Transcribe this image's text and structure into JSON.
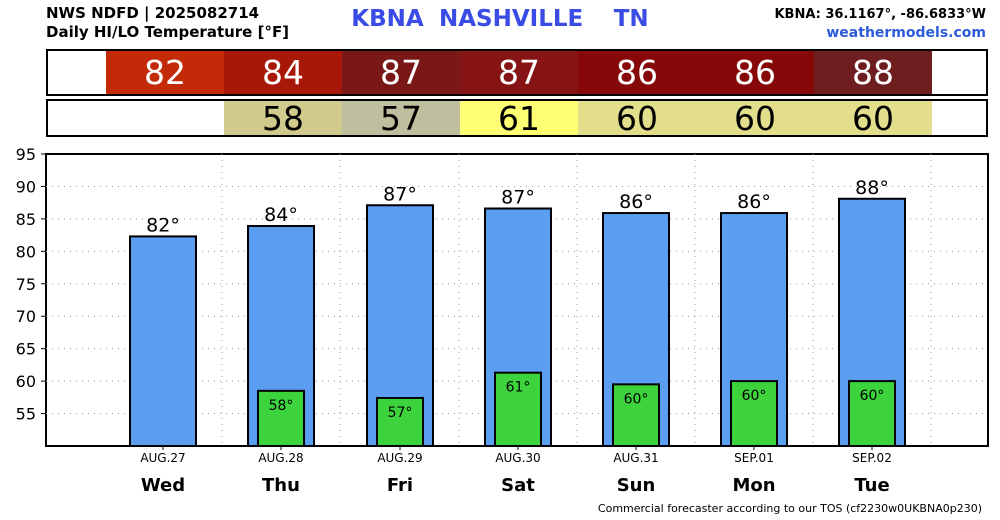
{
  "header": {
    "line1": "NWS NDFD | 2025082714",
    "line2": "Daily HI/LO Temperature [°F]",
    "station": "KBNA",
    "city": "NASHVILLE",
    "state": "TN",
    "coords": "KBNA: 36.1167°, -86.6833°W",
    "site": "weathermodels.com"
  },
  "colors": {
    "hi_bar": "#5b9df0",
    "lo_bar": "#3cd33c",
    "hi_cells": [
      "#c22a08",
      "#a81808",
      "#7a1818",
      "#861414",
      "#860808",
      "#860808",
      "#6e1e1e"
    ],
    "lo_cells": [
      "#d0cb8c",
      "#bfbfa0",
      "#ffff73",
      "#e3de8c",
      "#e3de8c",
      "#e3de8c"
    ]
  },
  "hi_row": [
    "82",
    "84",
    "87",
    "87",
    "86",
    "86",
    "88"
  ],
  "lo_row": [
    "58",
    "57",
    "61",
    "60",
    "60",
    "60"
  ],
  "chart_data": {
    "type": "bar",
    "title": "Daily HI/LO Temperature [°F]",
    "dates": [
      "AUG.27",
      "AUG.28",
      "AUG.29",
      "AUG.30",
      "AUG.31",
      "SEP.01",
      "SEP.02"
    ],
    "days": [
      "Wed",
      "Thu",
      "Fri",
      "Sat",
      "Sun",
      "Mon",
      "Tue"
    ],
    "ylim": [
      50,
      95
    ],
    "yticks": [
      55,
      60,
      65,
      70,
      75,
      80,
      85,
      90,
      95
    ],
    "grid": true,
    "series": [
      {
        "values": [
          82.3,
          83.9,
          87.1,
          86.6,
          85.9,
          85.9,
          88.1
        ],
        "labels": [
          "82°",
          "84°",
          "87°",
          "87°",
          "86°",
          "86°",
          "88°"
        ]
      },
      {
        "values": [
          null,
          58.5,
          57.4,
          61.3,
          59.5,
          60.0,
          60.0
        ],
        "labels": [
          "",
          "58°",
          "57°",
          "61°",
          "60°",
          "60°",
          "60°"
        ]
      }
    ]
  },
  "footer": "Commercial forecaster according to our TOS (cf2230w0UKBNA0p230)"
}
